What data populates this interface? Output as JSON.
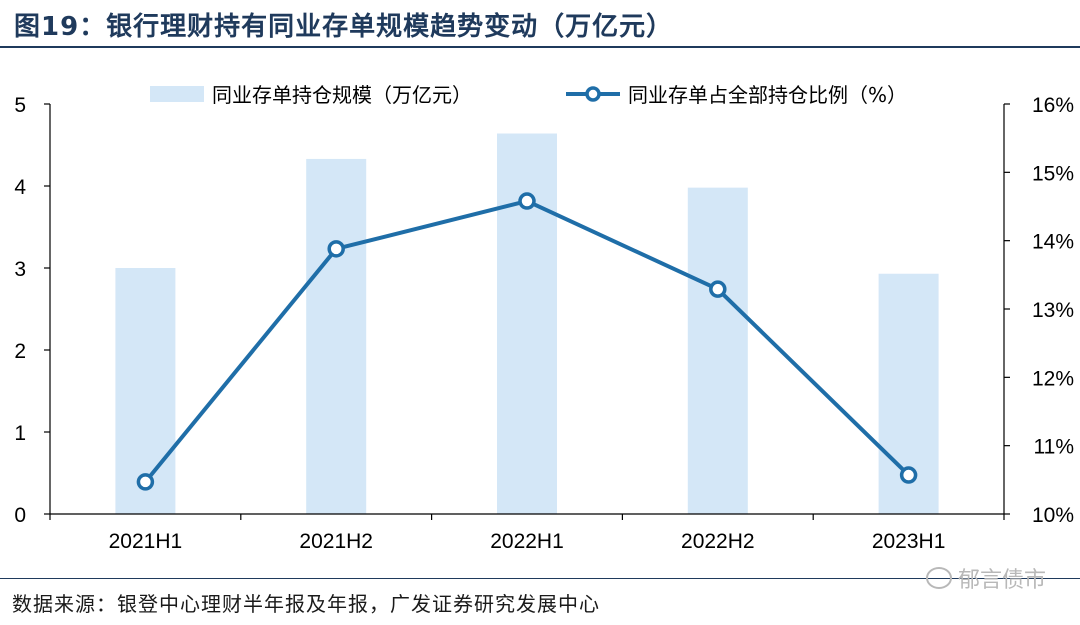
{
  "title": "图19：银行理财持有同业存单规模趋势变动（万亿元）",
  "source": "数据来源：银登中心理财半年报及年报，广发证券研究发展中心",
  "watermark": "郁言债市",
  "colors": {
    "bar": "#d4e7f7",
    "line": "#1f6ea8",
    "title": "#1f3a5c"
  },
  "chart_data": {
    "type": "bar",
    "categories": [
      "2021H1",
      "2021H2",
      "2022H1",
      "2022H2",
      "2023H1"
    ],
    "series": [
      {
        "name": "同业存单持仓规模（万亿元）",
        "type": "bar",
        "axis": "left",
        "values": [
          3.0,
          4.33,
          4.64,
          3.98,
          2.93
        ]
      },
      {
        "name": "同业存单占全部持仓比例（%）",
        "type": "line",
        "axis": "right",
        "values": [
          10.47,
          13.88,
          14.58,
          13.29,
          10.57
        ]
      }
    ],
    "left_axis": {
      "ylim": [
        0,
        5
      ],
      "ticks": [
        "0",
        "1",
        "2",
        "3",
        "4",
        "5"
      ]
    },
    "right_axis": {
      "ylim": [
        10,
        16
      ],
      "ticks": [
        "10%",
        "11%",
        "12%",
        "13%",
        "14%",
        "15%",
        "16%"
      ]
    },
    "legend_position": "top",
    "grid": false
  }
}
